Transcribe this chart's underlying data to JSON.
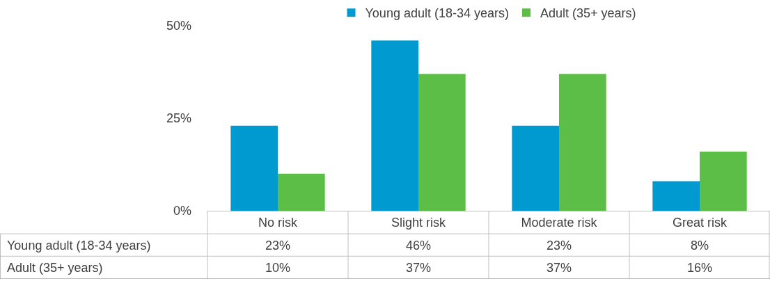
{
  "chart_data": {
    "type": "bar",
    "categories": [
      "No risk",
      "Slight risk",
      "Moderate risk",
      "Great risk"
    ],
    "series": [
      {
        "name": "Young adult (18-34 years)",
        "color": "#0099d0",
        "values": [
          23,
          46,
          23,
          8
        ],
        "value_labels": [
          "23%",
          "46%",
          "23%",
          "8%"
        ]
      },
      {
        "name": "Adult (35+ years)",
        "color": "#5cbd47",
        "values": [
          10,
          37,
          37,
          16
        ],
        "value_labels": [
          "10%",
          "37%",
          "37%",
          "16%"
        ]
      }
    ],
    "ylim": [
      0,
      50
    ],
    "yticks": [
      {
        "value": 0,
        "label": "0%"
      },
      {
        "value": 25,
        "label": "25%"
      },
      {
        "value": 50,
        "label": "50%"
      }
    ],
    "legend": "top"
  }
}
